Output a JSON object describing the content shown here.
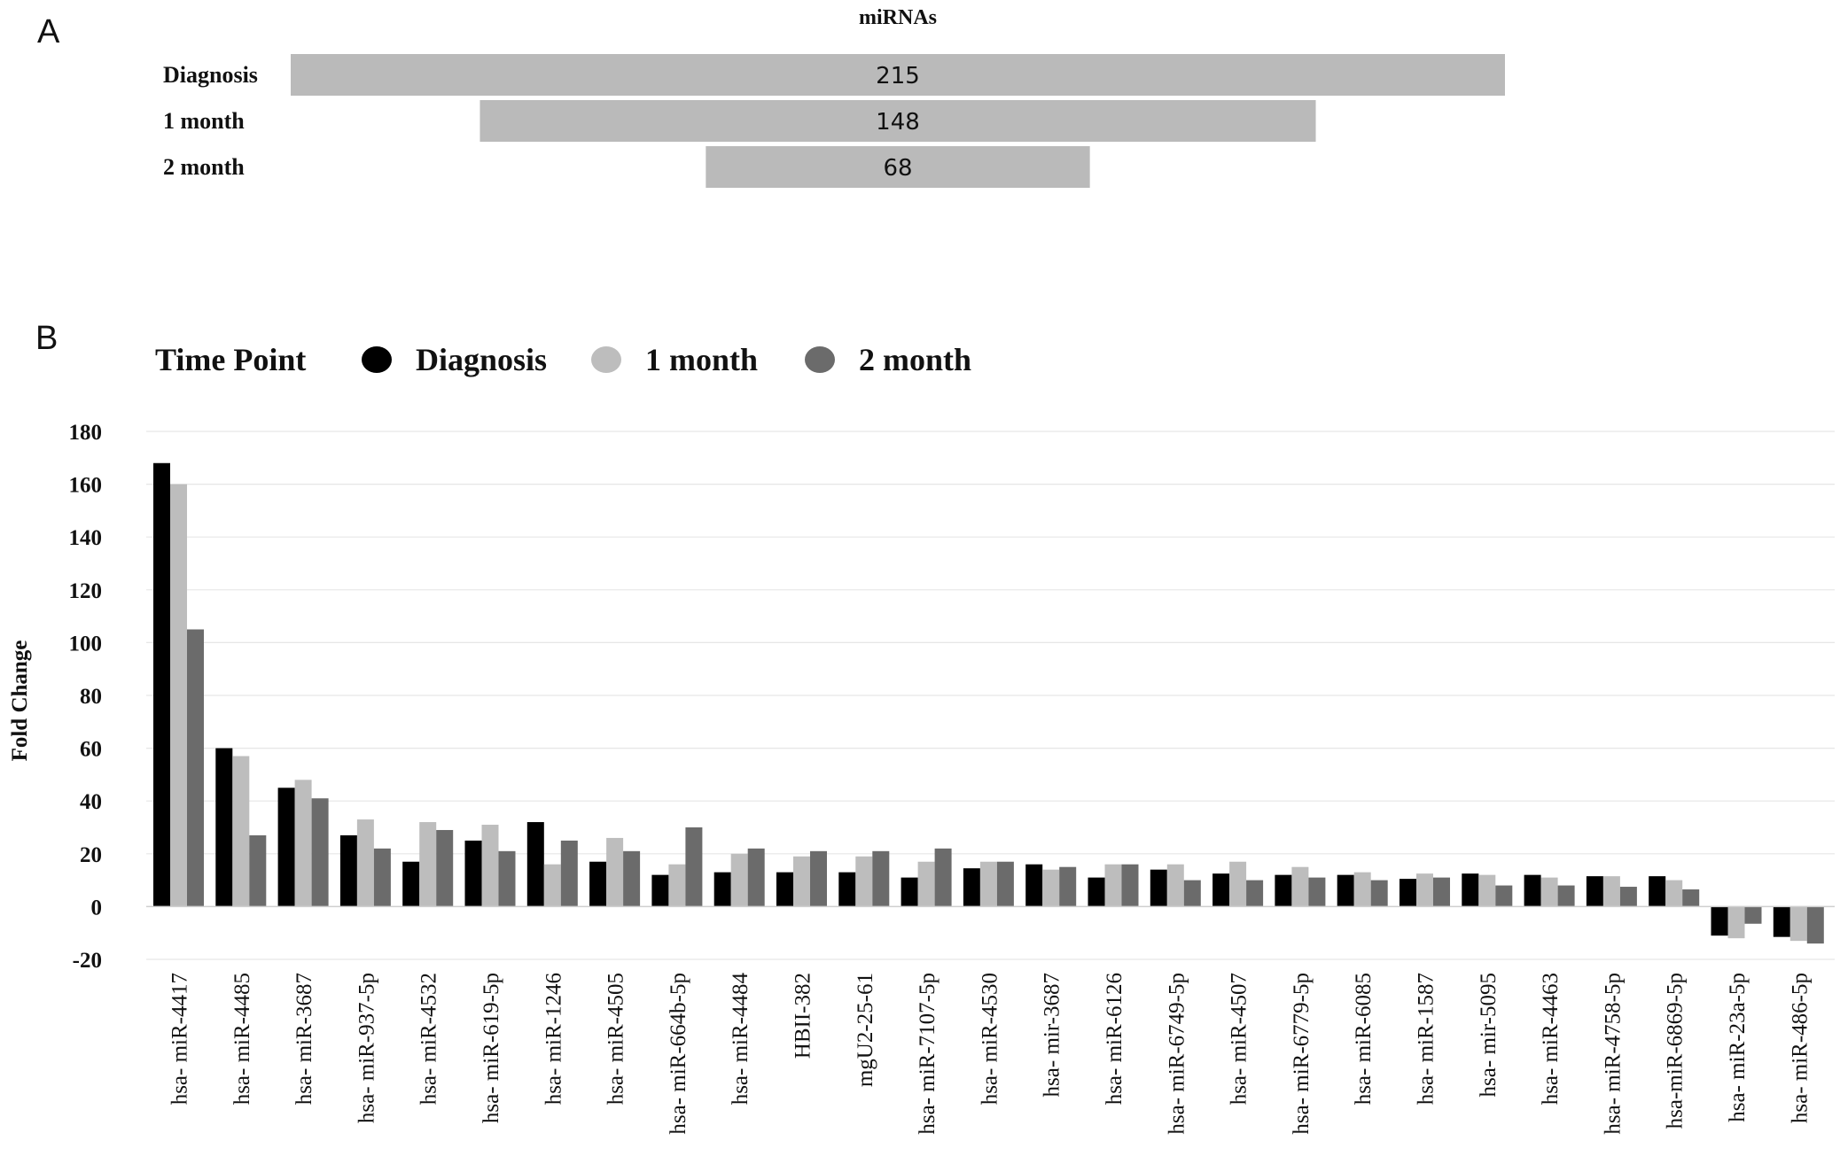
{
  "panels": {
    "a": "A",
    "b": "B"
  },
  "colors": {
    "diagnosis": "#000000",
    "month1": "#bdbdbd",
    "month2": "#6b6b6b",
    "panel_a_bar": "#bababa",
    "grid": "#e6e6e6"
  },
  "chart_data": [
    {
      "type": "bar",
      "orientation": "horizontal",
      "title": "miRNAs",
      "categories": [
        "Diagnosis",
        "1 month",
        "2 month"
      ],
      "values": [
        215,
        148,
        68
      ]
    },
    {
      "type": "bar",
      "legend_title": "Time Point",
      "legend_position": "top-left",
      "ylabel": "Fold Change",
      "ylim": [
        -20,
        180
      ],
      "yticks": [
        180,
        160,
        140,
        120,
        100,
        80,
        60,
        40,
        20,
        0,
        -20
      ],
      "grid": true,
      "categories": [
        "hsa- miR-4417",
        "hsa- miR-4485",
        "hsa- miR-3687",
        "hsa- miR-937-5p",
        "hsa- miR-4532",
        "hsa- miR-619-5p",
        "hsa- miR-1246",
        "hsa- miR-4505",
        "hsa- miR-664b-5p",
        "hsa- miR-4484",
        "HBII-382",
        "mgU2-25-61",
        "hsa- miR-7107-5p",
        "hsa- miR-4530",
        "hsa- mir-3687",
        "hsa- miR-6126",
        "hsa- miR-6749-5p",
        "hsa- miR-4507",
        "hsa- miR-6779-5p",
        "hsa- miR-6085",
        "hsa- miR-1587",
        "hsa- mir-5095",
        "hsa- miR-4463",
        "hsa- miR-4758-5p",
        "hsa-miR-6869-5p",
        "hsa- miR-23a-5p",
        "hsa- miR-486-5p"
      ],
      "series": [
        {
          "name": "Diagnosis",
          "values": [
            168,
            60,
            45,
            27,
            17,
            25,
            32,
            17,
            12,
            13,
            13,
            13,
            11,
            14.5,
            16,
            11,
            14,
            12.5,
            12,
            12,
            10.5,
            12.5,
            12,
            11.5,
            11.5,
            -11,
            -11.5
          ]
        },
        {
          "name": "1 month",
          "values": [
            160,
            57,
            48,
            33,
            32,
            31,
            16,
            26,
            16,
            20,
            19,
            19,
            17,
            17,
            14,
            16,
            16,
            17,
            15,
            13,
            12.5,
            12,
            11,
            11.5,
            10,
            -12,
            -13
          ]
        },
        {
          "name": "2 month",
          "values": [
            105,
            27,
            41,
            22,
            29,
            21,
            25,
            21,
            30,
            22,
            21,
            21,
            22,
            17,
            15,
            16,
            10,
            10,
            11,
            10,
            11,
            8,
            8,
            7.5,
            6.5,
            -6.5,
            -14
          ]
        }
      ]
    }
  ]
}
